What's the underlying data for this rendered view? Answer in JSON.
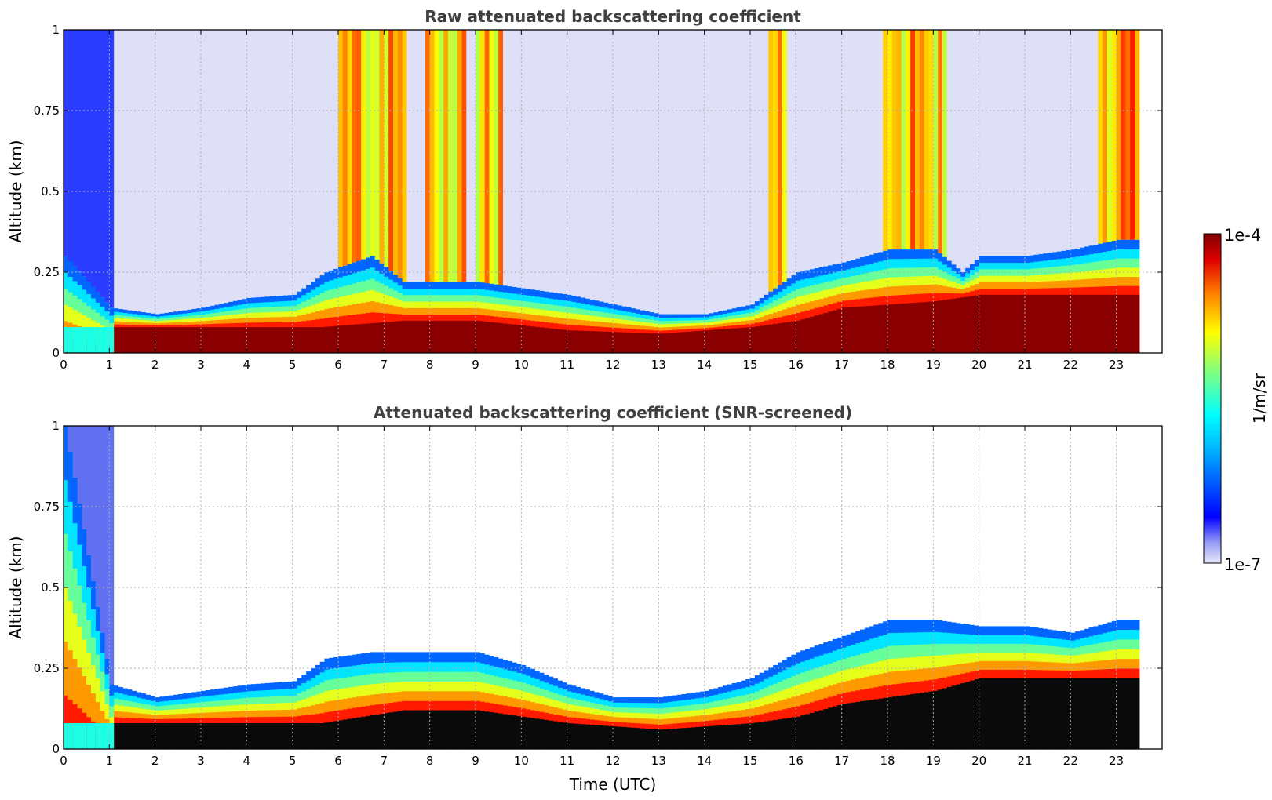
{
  "chart_data": [
    {
      "type": "heatmap",
      "title": "Raw attenuated backscattering coefficient",
      "xlabel": "",
      "ylabel": "Altitude (km)",
      "xlim": [
        0,
        24
      ],
      "ylim": [
        0,
        1
      ],
      "x_ticks": [
        "0",
        "1",
        "2",
        "3",
        "4",
        "5",
        "6",
        "7",
        "8",
        "9",
        "10",
        "11",
        "12",
        "13",
        "14",
        "15",
        "16",
        "17",
        "18",
        "19",
        "20",
        "21",
        "22",
        "23"
      ],
      "y_ticks": [
        "0",
        "0.25",
        "0.5",
        "0.75",
        "1"
      ],
      "grid": true,
      "data_end_hour": 23.5,
      "boundary_layer_top_km": [
        [
          0,
          0.3
        ],
        [
          1,
          0.14
        ],
        [
          2,
          0.12
        ],
        [
          3,
          0.14
        ],
        [
          4,
          0.17
        ],
        [
          5,
          0.18
        ],
        [
          5.7,
          0.25
        ],
        [
          6.7,
          0.3
        ],
        [
          7.4,
          0.22
        ],
        [
          8,
          0.22
        ],
        [
          9,
          0.22
        ],
        [
          10,
          0.2
        ],
        [
          11,
          0.18
        ],
        [
          12,
          0.15
        ],
        [
          13,
          0.12
        ],
        [
          14,
          0.12
        ],
        [
          15,
          0.15
        ],
        [
          16,
          0.25
        ],
        [
          17,
          0.28
        ],
        [
          18,
          0.32
        ],
        [
          19,
          0.32
        ],
        [
          19.6,
          0.25
        ],
        [
          20,
          0.3
        ],
        [
          21,
          0.3
        ],
        [
          22,
          0.32
        ],
        [
          23,
          0.35
        ]
      ],
      "high_signal_layer_km": [
        [
          1,
          0.08
        ],
        [
          5.6,
          0.08
        ],
        [
          7.4,
          0.1
        ],
        [
          9,
          0.1
        ],
        [
          11,
          0.07
        ],
        [
          13,
          0.06
        ],
        [
          15,
          0.08
        ],
        [
          16,
          0.1
        ],
        [
          17,
          0.14
        ],
        [
          19,
          0.16
        ],
        [
          20,
          0.18
        ],
        [
          22,
          0.18
        ]
      ],
      "cloud_or_rain_periods_h": [
        [
          5.9,
          6.7
        ],
        [
          6.7,
          7.4
        ],
        [
          7.8,
          8.7
        ],
        [
          8.9,
          9.5
        ],
        [
          15.3,
          15.7
        ],
        [
          17.8,
          19.3
        ],
        [
          22.6,
          23.5
        ]
      ]
    },
    {
      "type": "heatmap",
      "title": "Attenuated backscattering coefficient (SNR-screened)",
      "xlabel": "Time (UTC)",
      "ylabel": "Altitude (km)",
      "xlim": [
        0,
        24
      ],
      "ylim": [
        0,
        1
      ],
      "x_ticks": [
        "0",
        "1",
        "2",
        "3",
        "4",
        "5",
        "6",
        "7",
        "8",
        "9",
        "10",
        "11",
        "12",
        "13",
        "14",
        "15",
        "16",
        "17",
        "18",
        "19",
        "20",
        "21",
        "22",
        "23"
      ],
      "y_ticks": [
        "0",
        "0.25",
        "0.5",
        "0.75",
        "1"
      ],
      "grid": true,
      "data_end_hour": 23.5,
      "boundary_layer_top_km": [
        [
          0,
          1.0
        ],
        [
          1,
          0.2
        ],
        [
          2,
          0.16
        ],
        [
          3,
          0.18
        ],
        [
          4,
          0.2
        ],
        [
          5,
          0.21
        ],
        [
          5.7,
          0.28
        ],
        [
          6.7,
          0.3
        ],
        [
          7.4,
          0.3
        ],
        [
          8,
          0.3
        ],
        [
          9,
          0.3
        ],
        [
          10,
          0.26
        ],
        [
          11,
          0.2
        ],
        [
          12,
          0.16
        ],
        [
          13,
          0.16
        ],
        [
          14,
          0.18
        ],
        [
          15,
          0.22
        ],
        [
          16,
          0.3
        ],
        [
          17,
          0.35
        ],
        [
          18,
          0.4
        ],
        [
          19,
          0.4
        ],
        [
          20,
          0.38
        ],
        [
          21,
          0.38
        ],
        [
          22,
          0.36
        ],
        [
          23,
          0.4
        ]
      ],
      "saturated_layer_km": [
        [
          1,
          0.08
        ],
        [
          5.6,
          0.08
        ],
        [
          7.4,
          0.12
        ],
        [
          9,
          0.12
        ],
        [
          11,
          0.08
        ],
        [
          13,
          0.06
        ],
        [
          15,
          0.08
        ],
        [
          16,
          0.1
        ],
        [
          17,
          0.14
        ],
        [
          19,
          0.18
        ],
        [
          20,
          0.22
        ],
        [
          22,
          0.22
        ]
      ]
    }
  ],
  "colorbar": {
    "max_label": "1e-4",
    "min_label": "1e-7",
    "unit_label": "1/m/sr",
    "colormap": "jet",
    "scale": "log",
    "range": [
      1e-07,
      0.0001
    ],
    "colors": [
      "#e8e8fa",
      "#0000ff",
      "#00ffff",
      "#ffff00",
      "#ff0000",
      "#800000"
    ]
  }
}
